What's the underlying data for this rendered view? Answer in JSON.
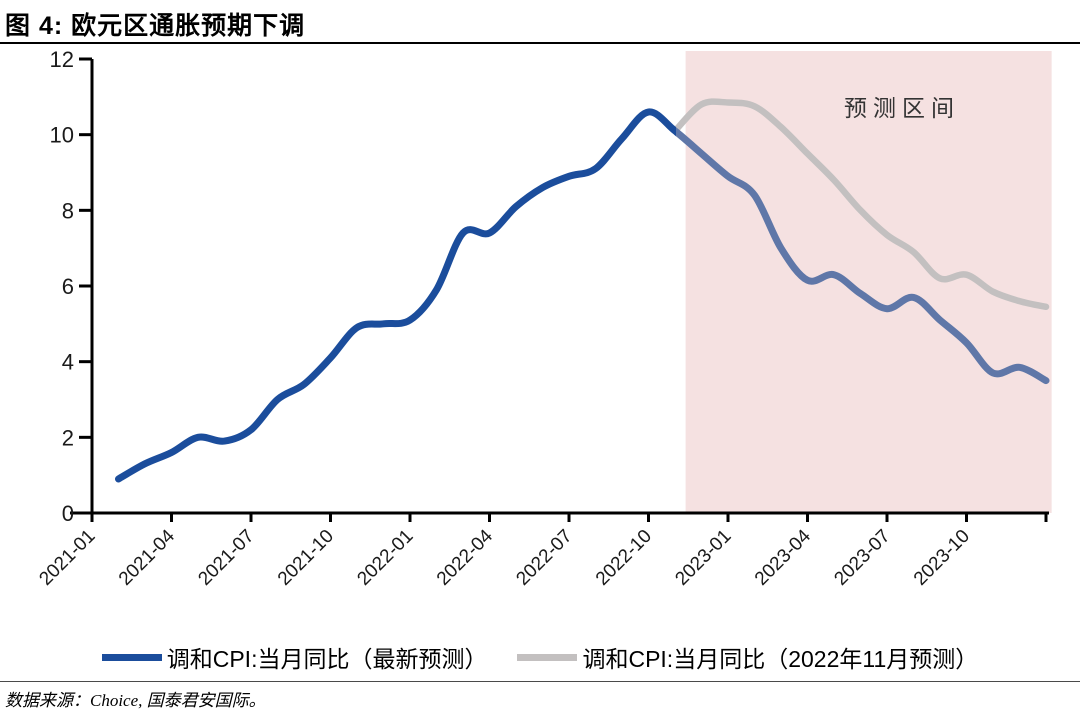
{
  "page": {
    "title": "图 4: 欧元区通胀预期下调",
    "source_note": "数据来源：Choice, 国泰君安国际。"
  },
  "legend": {
    "items": [
      {
        "label": "调和CPI:当月同比（最新预测）",
        "color": "#1b4d9c"
      },
      {
        "label": "调和CPI:当月同比（2022年11月预测）",
        "color": "#c3c0c0"
      }
    ]
  },
  "chart_data": {
    "type": "line",
    "title": "图 4: 欧元区通胀预期下调",
    "x_unit": "month",
    "x_range": [
      "2021-01",
      "2024-01"
    ],
    "x_tick_labels": [
      "2021-01",
      "2021-04",
      "2021-07",
      "2021-10",
      "2022-01",
      "2022-04",
      "2022-07",
      "2022-10",
      "2023-01",
      "2023-04",
      "2023-07",
      "2023-10"
    ],
    "x_tick_label_month_indices": [
      0,
      3,
      6,
      9,
      12,
      15,
      18,
      21,
      24,
      27,
      30,
      33
    ],
    "x_end_tick_month_index": 36,
    "ylim": [
      0,
      12
    ],
    "yticks": [
      0,
      2,
      4,
      6,
      8,
      10,
      12
    ],
    "grid": false,
    "legend_position": "bottom",
    "axis_color": "#000000",
    "series": [
      {
        "name": "调和CPI:当月同比（最新预测）",
        "color": "#1b4d9c",
        "forecast_color": "#5f77a8",
        "start_month": "2021-02",
        "start_index": 1,
        "forecast_from_index": 22,
        "values": [
          0.9,
          1.3,
          1.6,
          2.0,
          1.9,
          2.2,
          3.0,
          3.4,
          4.1,
          4.9,
          5.0,
          5.1,
          5.9,
          7.4,
          7.4,
          8.1,
          8.6,
          8.9,
          9.1,
          9.9,
          10.6,
          10.1,
          9.5,
          8.9,
          8.4,
          7.0,
          6.15,
          6.3,
          5.8,
          5.4,
          5.7,
          5.1,
          4.5,
          3.7,
          3.85,
          3.5
        ]
      },
      {
        "name": "调和CPI:当月同比（2022年11月预测）",
        "color": "#c3c0c0",
        "start_month": "2022-11",
        "start_index": 22,
        "values": [
          10.1,
          10.8,
          10.85,
          10.75,
          10.2,
          9.5,
          8.8,
          8.0,
          7.35,
          6.9,
          6.2,
          6.3,
          5.85,
          5.6,
          5.45
        ]
      }
    ],
    "forecast_region": {
      "label": "预测区间",
      "start_month": "2022-11",
      "start_index": 22.4,
      "end_index": 36.1,
      "fill": "#f5e1e1",
      "label_color": "#333333"
    }
  }
}
